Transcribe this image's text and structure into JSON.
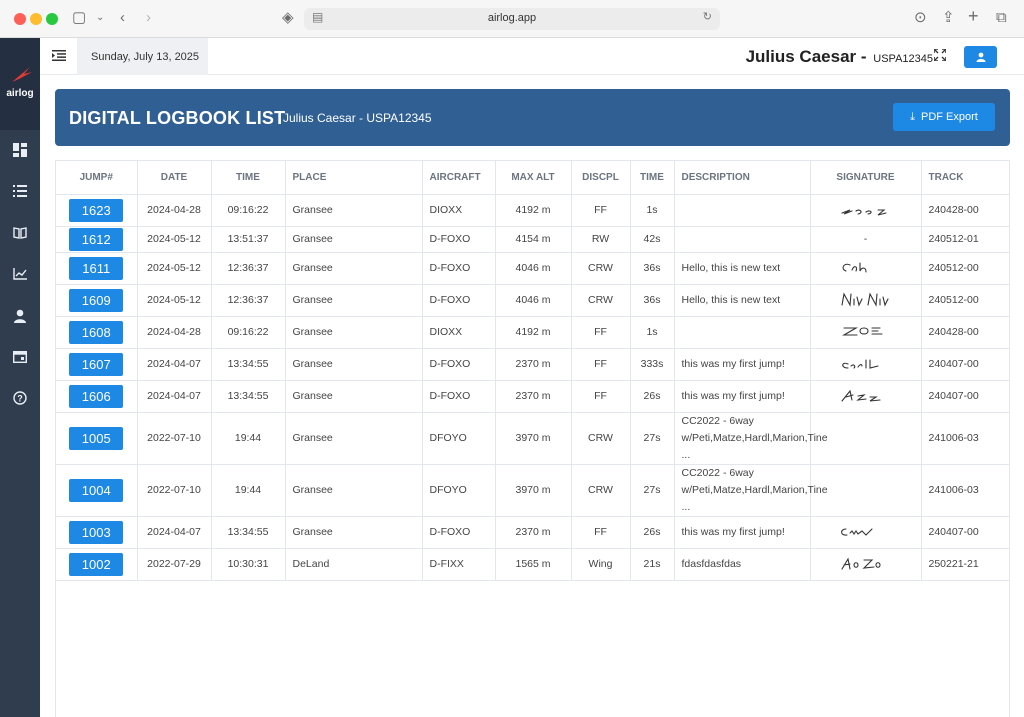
{
  "browser": {
    "url": "airlog.app"
  },
  "sidebar": {
    "logo_text": "airlog"
  },
  "topbar": {
    "date": "Sunday, July 13, 2025",
    "user_name": "Julius Caesar -",
    "user_id": "USPA12345"
  },
  "banner": {
    "title": "DIGITAL LOGBOOK LIST",
    "subtitle": "Julius Caesar - USPA12345",
    "pdf_label": "PDF Export"
  },
  "table": {
    "headers": [
      "JUMP#",
      "DATE",
      "TIME",
      "PLACE",
      "AIRCRAFT",
      "MAX ALT",
      "DISCPL",
      "TIME",
      "DESCRIPTION",
      "SIGNATURE",
      "TRACK"
    ],
    "rows": [
      {
        "jump": "1623",
        "date": "2024-04-28",
        "time": "09:16:22",
        "place": "Gransee",
        "aircraft": "DIOXX",
        "alt": "4192 m",
        "disc": "FF",
        "dur": "1s",
        "desc": "",
        "sig": "Zoc2",
        "track": "240428-00"
      },
      {
        "jump": "1612",
        "date": "2024-05-12",
        "time": "13:51:37",
        "place": "Gransee",
        "aircraft": "D-FOXO",
        "alt": "4154 m",
        "disc": "RW",
        "dur": "42s",
        "desc": "",
        "sig": "-",
        "track": "240512-01"
      },
      {
        "jump": "1611",
        "date": "2024-05-12",
        "time": "12:36:37",
        "place": "Gransee",
        "aircraft": "D-FOXO",
        "alt": "4046 m",
        "disc": "CRW",
        "dur": "36s",
        "desc": "Hello, this is new text",
        "sig": "Cdh",
        "track": "240512-00"
      },
      {
        "jump": "1609",
        "date": "2024-05-12",
        "time": "12:36:37",
        "place": "Gransee",
        "aircraft": "D-FOXO",
        "alt": "4046 m",
        "disc": "CRW",
        "dur": "36s",
        "desc": "Hello, this is new text",
        "sig": "Nik Nik",
        "track": "240512-00"
      },
      {
        "jump": "1608",
        "date": "2024-04-28",
        "time": "09:16:22",
        "place": "Gransee",
        "aircraft": "DIOXX",
        "alt": "4192 m",
        "disc": "FF",
        "dur": "1s",
        "desc": "",
        "sig": "ZOE",
        "track": "240428-00"
      },
      {
        "jump": "1607",
        "date": "2024-04-07",
        "time": "13:34:55",
        "place": "Gransee",
        "aircraft": "D-FOXO",
        "alt": "2370 m",
        "disc": "FF",
        "dur": "333s",
        "desc": "this was my first jump!",
        "sig": "Carll",
        "track": "240407-00"
      },
      {
        "jump": "1606",
        "date": "2024-04-07",
        "time": "13:34:55",
        "place": "Gransee",
        "aircraft": "D-FOXO",
        "alt": "2370 m",
        "disc": "FF",
        "dur": "26s",
        "desc": "this was my first jump!",
        "sig": "Azz",
        "track": "240407-00"
      },
      {
        "jump": "1005",
        "date": "2022-07-10",
        "time": "19:44",
        "place": "Gransee",
        "aircraft": "DFOYO",
        "alt": "3970 m",
        "disc": "CRW",
        "dur": "27s",
        "desc": "CC2022 - 6way w/Peti,Matze,Hardl,Marion,Tine ...",
        "sig": "",
        "track": "241006-03"
      },
      {
        "jump": "1004",
        "date": "2022-07-10",
        "time": "19:44",
        "place": "Gransee",
        "aircraft": "DFOYO",
        "alt": "3970 m",
        "disc": "CRW",
        "dur": "27s",
        "desc": "CC2022 - 6way w/Peti,Matze,Hardl,Marion,Tine ...",
        "sig": "",
        "track": "241006-03"
      },
      {
        "jump": "1003",
        "date": "2024-04-07",
        "time": "13:34:55",
        "place": "Gransee",
        "aircraft": "D-FOXO",
        "alt": "2370 m",
        "disc": "FF",
        "dur": "26s",
        "desc": "this was my first jump!",
        "sig": "Cm",
        "track": "240407-00"
      },
      {
        "jump": "1002",
        "date": "2022-07-29",
        "time": "10:30:31",
        "place": "DeLand",
        "aircraft": "D-FIXX",
        "alt": "1565 m",
        "disc": "Wing",
        "dur": "21s",
        "desc": "fdasfdasfdas",
        "sig": "Ao Zo",
        "track": "250221-21"
      }
    ]
  },
  "colors": {
    "sidebar": "#2f3d4f",
    "banner": "#2f5f93",
    "accent": "#1e88e5",
    "logo": "#e53935"
  }
}
